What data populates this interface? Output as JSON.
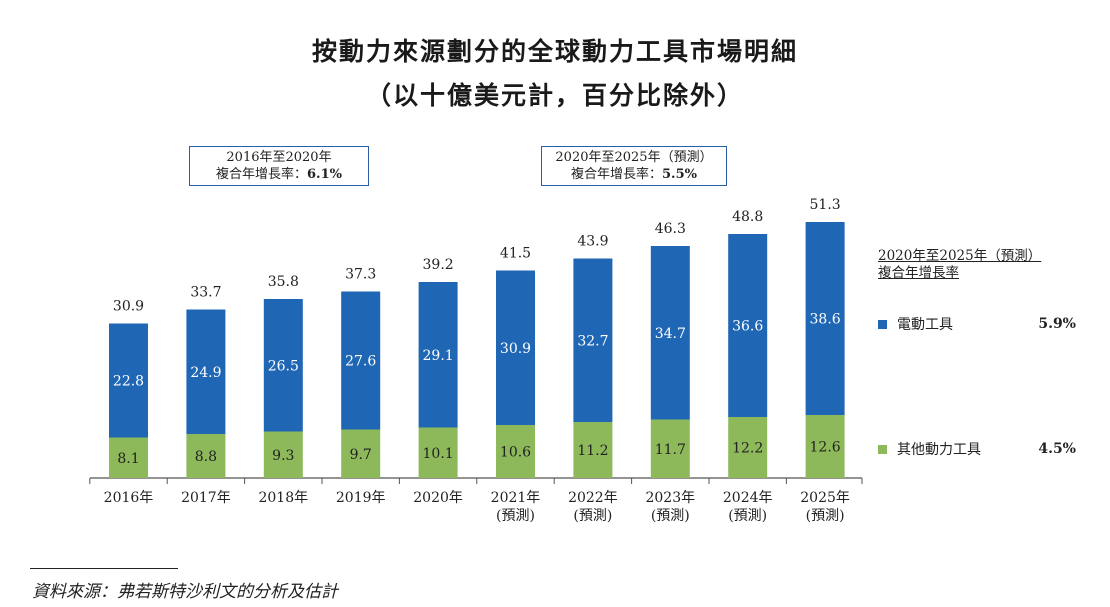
{
  "title_line1": "按動力來源劃分的全球動力工具市場明細",
  "title_line2": "（以十億美元計，百分比除外）",
  "cagr_boxes": [
    {
      "line1": "2016年至2020年",
      "line2_label": "複合年增長率：",
      "value": "6.1%"
    },
    {
      "line1": "2020年至2025年（預測）",
      "line2_label": "複合年增長率：",
      "value": "5.5%"
    }
  ],
  "legend": {
    "title_line1": "2020年至2025年（預測）",
    "title_line2": "複合年增長率",
    "items": [
      {
        "label": "電動工具",
        "rate": "5.9%",
        "color": "#1f66b4"
      },
      {
        "label": "其他動力工具",
        "rate": "4.5%",
        "color": "#8db95a"
      }
    ]
  },
  "source": "資料來源：弗若斯特沙利文的分析及估計",
  "chart_data": {
    "type": "bar",
    "stacked": true,
    "categories": [
      "2016年",
      "2017年",
      "2018年",
      "2019年",
      "2020年",
      "2021年",
      "2022年",
      "2023年",
      "2024年",
      "2025年"
    ],
    "category_sublabels": [
      "",
      "",
      "",
      "",
      "",
      "(預測)",
      "(預測)",
      "(預測)",
      "(預測)",
      "(預測)"
    ],
    "series": [
      {
        "name": "其他動力工具",
        "values": [
          8.1,
          8.8,
          9.3,
          9.7,
          10.1,
          10.6,
          11.2,
          11.7,
          12.2,
          12.6
        ],
        "color": "#8db95a"
      },
      {
        "name": "電動工具",
        "values": [
          22.8,
          24.9,
          26.5,
          27.6,
          29.1,
          30.9,
          32.7,
          34.7,
          36.6,
          38.6
        ],
        "color": "#1f66b4"
      }
    ],
    "totals": [
      30.9,
      33.7,
      35.8,
      37.3,
      39.2,
      41.5,
      43.9,
      46.3,
      48.8,
      51.3
    ],
    "grid": false,
    "legend_position": "right"
  }
}
